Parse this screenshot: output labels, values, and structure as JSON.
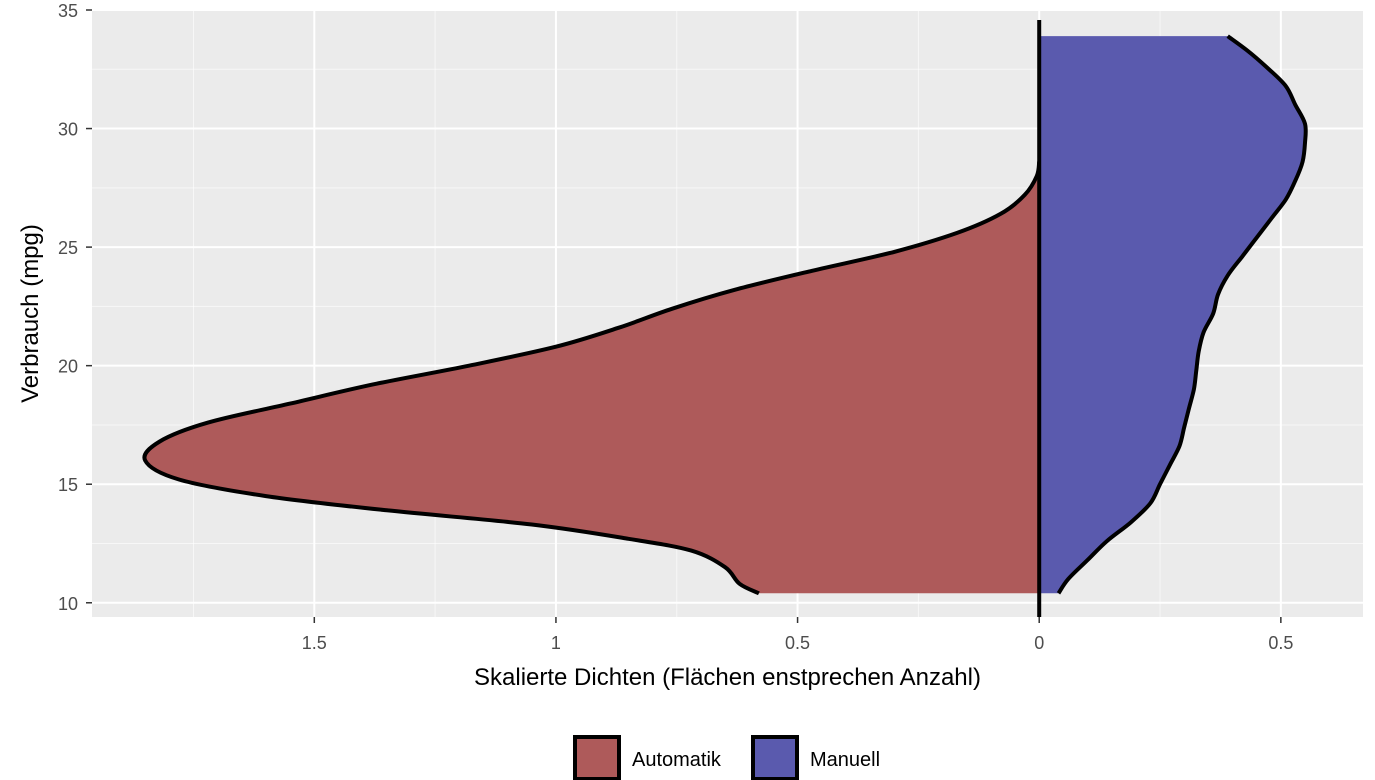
{
  "chart_data": {
    "type": "area",
    "title": "",
    "xlabel": "Skalierte Dichten (Flächen enstprechen Anzahl)",
    "ylabel": "Verbrauch (mpg)",
    "xlim": [
      -1.96,
      0.67
    ],
    "ylim": [
      9.4,
      35
    ],
    "x_ticks": [
      {
        "value": -1.5,
        "label": "1.5"
      },
      {
        "value": -1.0,
        "label": "1"
      },
      {
        "value": -0.5,
        "label": "0.5"
      },
      {
        "value": 0,
        "label": "0"
      },
      {
        "value": 0.5,
        "label": "0.5"
      }
    ],
    "y_ticks": [
      10,
      15,
      20,
      25,
      30,
      35
    ],
    "grid": true,
    "background": "#ebebeb",
    "legend_position": "bottom",
    "series": [
      {
        "name": "Automatik",
        "side": "left",
        "color": "#ae5a5a",
        "points": [
          [
            10.4,
            0.58
          ],
          [
            10.8,
            0.62
          ],
          [
            11.5,
            0.65
          ],
          [
            12.2,
            0.72
          ],
          [
            12.7,
            0.85
          ],
          [
            13.3,
            1.05
          ],
          [
            13.9,
            1.35
          ],
          [
            14.5,
            1.6
          ],
          [
            15.2,
            1.78
          ],
          [
            16.0,
            1.85
          ],
          [
            16.8,
            1.82
          ],
          [
            17.6,
            1.72
          ],
          [
            18.4,
            1.55
          ],
          [
            19.2,
            1.38
          ],
          [
            20.0,
            1.18
          ],
          [
            20.8,
            1.0
          ],
          [
            21.6,
            0.87
          ],
          [
            22.4,
            0.76
          ],
          [
            23.2,
            0.63
          ],
          [
            24.0,
            0.47
          ],
          [
            24.8,
            0.3
          ],
          [
            25.6,
            0.17
          ],
          [
            26.4,
            0.08
          ],
          [
            27.2,
            0.03
          ],
          [
            28.0,
            0.005
          ],
          [
            28.6,
            0.0
          ]
        ]
      },
      {
        "name": "Manuell",
        "side": "right",
        "color": "#5a5aae",
        "points": [
          [
            10.4,
            0.04
          ],
          [
            11.0,
            0.06
          ],
          [
            11.8,
            0.1
          ],
          [
            12.6,
            0.14
          ],
          [
            13.4,
            0.19
          ],
          [
            14.2,
            0.23
          ],
          [
            15.0,
            0.25
          ],
          [
            15.8,
            0.27
          ],
          [
            16.6,
            0.29
          ],
          [
            17.4,
            0.3
          ],
          [
            18.2,
            0.31
          ],
          [
            19.0,
            0.32
          ],
          [
            19.8,
            0.325
          ],
          [
            20.6,
            0.33
          ],
          [
            21.4,
            0.34
          ],
          [
            22.2,
            0.36
          ],
          [
            23.0,
            0.37
          ],
          [
            23.8,
            0.39
          ],
          [
            24.6,
            0.42
          ],
          [
            25.4,
            0.45
          ],
          [
            26.2,
            0.48
          ],
          [
            27.0,
            0.51
          ],
          [
            27.8,
            0.53
          ],
          [
            28.6,
            0.545
          ],
          [
            29.4,
            0.55
          ],
          [
            30.2,
            0.55
          ],
          [
            31.0,
            0.53
          ],
          [
            31.8,
            0.51
          ],
          [
            32.6,
            0.47
          ],
          [
            33.3,
            0.43
          ],
          [
            33.9,
            0.39
          ]
        ]
      }
    ]
  }
}
